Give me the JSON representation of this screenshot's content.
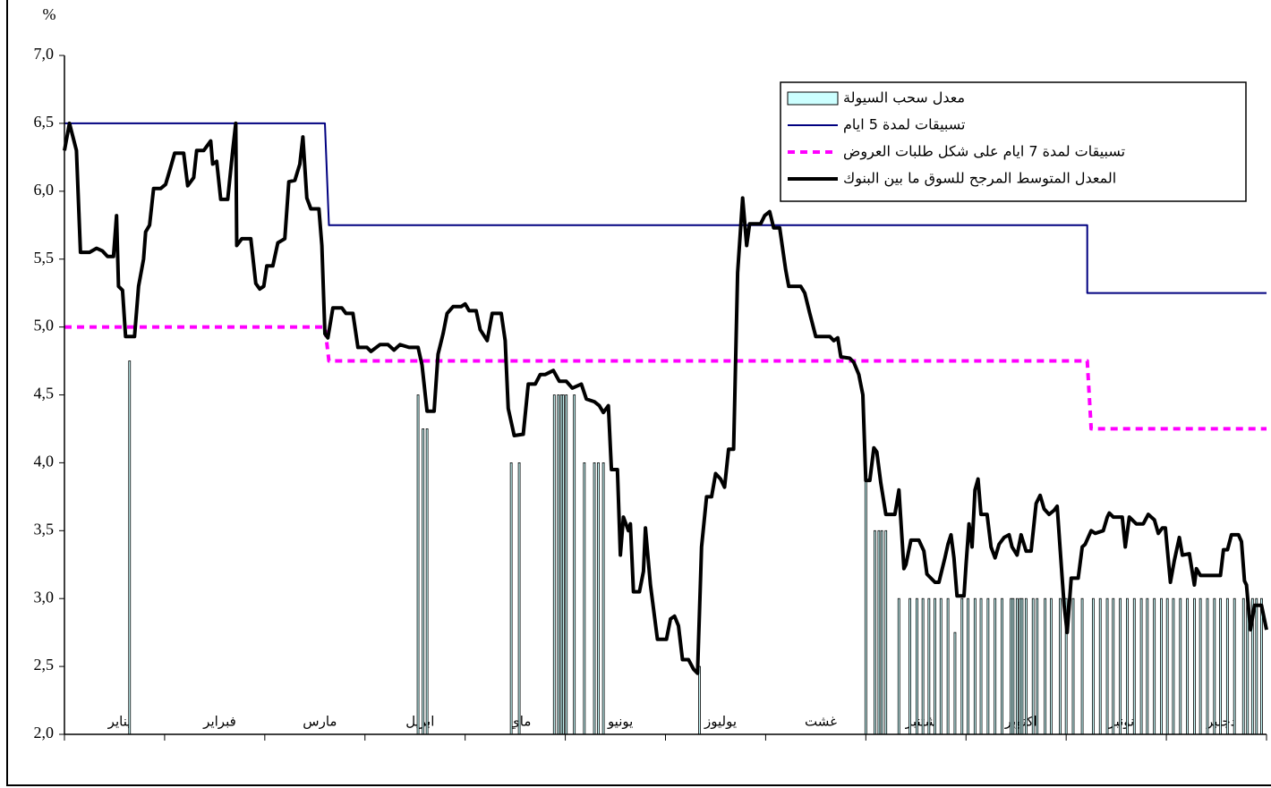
{
  "chart_data": {
    "type": "line",
    "y_unit": "%",
    "categories": [
      "يناير",
      "فبراير",
      "مارس",
      "ابريل",
      "ماي",
      "يونيو",
      "يوليوز",
      "غشت",
      "شتنبر",
      "اكتوبر",
      "نونبر",
      "دجنبر"
    ],
    "xlim": [
      0,
      12
    ],
    "ylim": [
      2.0,
      7.0
    ],
    "yticks": [
      {
        "value": 2.0,
        "label": "2,0"
      },
      {
        "value": 2.5,
        "label": "2,5"
      },
      {
        "value": 3.0,
        "label": "3,0"
      },
      {
        "value": 3.5,
        "label": "3,5"
      },
      {
        "value": 4.0,
        "label": "4,0"
      },
      {
        "value": 4.5,
        "label": "4,5"
      },
      {
        "value": 5.0,
        "label": "5,0"
      },
      {
        "value": 5.5,
        "label": "5,5"
      },
      {
        "value": 6.0,
        "label": "6,0"
      },
      {
        "value": 6.5,
        "label": "6,5"
      },
      {
        "value": 7.0,
        "label": "7,0"
      }
    ],
    "legend": "top-right",
    "series": [
      {
        "name": "معدل سحب السيولة",
        "type": "bar",
        "color": "#ccffff",
        "x": [
          0.65,
          3.53,
          3.58,
          3.62,
          4.46,
          4.54,
          4.89,
          4.93,
          4.96,
          4.98,
          5.01,
          5.09,
          5.19,
          5.29,
          5.33,
          5.38,
          6.34,
          8.0,
          8.09,
          8.13,
          8.16,
          8.2,
          8.33,
          8.44,
          8.51,
          8.57,
          8.63,
          8.69,
          8.75,
          8.82,
          8.89,
          8.96,
          9.02,
          9.09,
          9.15,
          9.22,
          9.29,
          9.36,
          9.45,
          9.47,
          9.51,
          9.54,
          9.56,
          9.6,
          9.67,
          9.71,
          9.79,
          9.85,
          9.94,
          10.0,
          10.07,
          10.16,
          10.27,
          10.34,
          10.41,
          10.47,
          10.54,
          10.61,
          10.68,
          10.75,
          10.81,
          10.88,
          10.95,
          11.01,
          11.07,
          11.14,
          11.21,
          11.28,
          11.34,
          11.41,
          11.48,
          11.54,
          11.61,
          11.68,
          11.77,
          11.81,
          11.86,
          11.9,
          11.95
        ],
        "values": [
          4.75,
          4.5,
          4.25,
          4.25,
          4.0,
          4.0,
          4.5,
          4.5,
          4.5,
          4.5,
          4.5,
          4.5,
          4.0,
          4.0,
          4.0,
          4.0,
          2.5,
          3.9,
          3.5,
          3.5,
          3.5,
          3.5,
          3.0,
          3.0,
          3.0,
          3.0,
          3.0,
          3.0,
          3.0,
          3.0,
          2.75,
          3.0,
          3.0,
          3.0,
          3.0,
          3.0,
          3.0,
          3.0,
          3.0,
          3.0,
          3.0,
          3.0,
          3.0,
          3.0,
          3.0,
          3.0,
          3.0,
          3.0,
          3.0,
          3.0,
          3.0,
          3.0,
          3.0,
          3.0,
          3.0,
          3.0,
          3.0,
          3.0,
          3.0,
          3.0,
          3.0,
          3.0,
          3.0,
          3.0,
          3.0,
          3.0,
          3.0,
          3.0,
          3.0,
          3.0,
          3.0,
          3.0,
          3.0,
          3.0,
          3.0,
          3.0,
          3.0,
          3.0,
          3.0
        ]
      },
      {
        "name": "تسبيقات لمدة 5 ايام",
        "type": "line",
        "color": "#000080",
        "line_width": 2,
        "dashed": false,
        "x": [
          0,
          2.6,
          2.64,
          10.21,
          10.21,
          12
        ],
        "values": [
          6.5,
          6.5,
          5.75,
          5.75,
          5.25,
          5.25
        ]
      },
      {
        "name": "تسبيقات لمدة 7 ايام على شكل طلبات العروض",
        "type": "line",
        "color": "#ff00ff",
        "line_width": 4,
        "dashed": true,
        "x": [
          0,
          2.6,
          2.64,
          10.21,
          10.25,
          12
        ],
        "values": [
          5.0,
          5.0,
          4.75,
          4.75,
          4.25,
          4.25
        ]
      },
      {
        "name": "المعدل المتوسط المرجح للسوق ما بين البنوك",
        "type": "line",
        "color": "#000000",
        "line_width": 4,
        "dashed": false,
        "x": [
          0,
          0.05,
          0.12,
          0.16,
          0.25,
          0.32,
          0.38,
          0.43,
          0.49,
          0.52,
          0.54,
          0.58,
          0.61,
          0.7,
          0.74,
          0.79,
          0.81,
          0.85,
          0.89,
          0.96,
          1.01,
          1.05,
          1.1,
          1.19,
          1.23,
          1.29,
          1.32,
          1.39,
          1.46,
          1.48,
          1.52,
          1.56,
          1.63,
          1.68,
          1.71,
          1.72,
          1.77,
          1.86,
          1.91,
          1.95,
          1.99,
          2.02,
          2.08,
          2.13,
          2.2,
          2.24,
          2.3,
          2.35,
          2.38,
          2.42,
          2.46,
          2.54,
          2.57,
          2.6,
          2.63,
          2.68,
          2.77,
          2.81,
          2.88,
          2.93,
          3.02,
          3.06,
          3.15,
          3.23,
          3.29,
          3.35,
          3.44,
          3.53,
          3.57,
          3.62,
          3.69,
          3.73,
          3.78,
          3.82,
          3.88,
          3.96,
          4.0,
          4.04,
          4.11,
          4.15,
          4.22,
          4.27,
          4.36,
          4.4,
          4.43,
          4.49,
          4.58,
          4.63,
          4.7,
          4.75,
          4.8,
          4.88,
          4.94,
          5.01,
          5.07,
          5.16,
          5.21,
          5.29,
          5.34,
          5.38,
          5.43,
          5.46,
          5.52,
          5.55,
          5.58,
          5.63,
          5.65,
          5.68,
          5.74,
          5.78,
          5.8,
          5.85,
          5.92,
          6.01,
          6.05,
          6.09,
          6.13,
          6.17,
          6.23,
          6.28,
          6.32,
          6.36,
          6.41,
          6.46,
          6.5,
          6.55,
          6.59,
          6.63,
          6.68,
          6.72,
          6.77,
          6.81,
          6.84,
          6.95,
          6.99,
          7.04,
          7.08,
          7.14,
          7.2,
          7.23,
          7.35,
          7.39,
          7.44,
          7.5,
          7.64,
          7.68,
          7.72,
          7.75,
          7.84,
          7.88,
          7.93,
          7.97,
          8.0,
          8.04,
          8.08,
          8.11,
          8.15,
          8.2,
          8.29,
          8.33,
          8.38,
          8.4,
          8.45,
          8.53,
          8.58,
          8.61,
          8.69,
          8.73,
          8.79,
          8.82,
          8.85,
          8.88,
          8.91,
          8.98,
          9.0,
          9.03,
          9.06,
          9.09,
          9.12,
          9.15,
          9.21,
          9.25,
          9.29,
          9.33,
          9.38,
          9.43,
          9.46,
          9.51,
          9.55,
          9.6,
          9.65,
          9.7,
          9.74,
          9.78,
          9.83,
          9.88,
          9.91,
          9.96,
          9.98,
          10.01,
          10.05,
          10.12,
          10.16,
          10.19,
          10.25,
          10.29,
          10.37,
          10.41,
          10.43,
          10.47,
          10.56,
          10.59,
          10.63,
          10.7,
          10.77,
          10.82,
          10.88,
          10.92,
          10.96,
          10.99,
          11.04,
          11.08,
          11.13,
          11.16,
          11.23,
          11.28,
          11.3,
          11.34,
          11.46,
          11.54,
          11.57,
          11.61,
          11.65,
          11.72,
          11.75,
          11.78,
          11.8,
          11.84,
          11.88,
          11.95,
          12.0
        ],
        "values": [
          6.3,
          6.5,
          6.3,
          5.55,
          5.55,
          5.58,
          5.56,
          5.52,
          5.52,
          5.82,
          5.3,
          5.27,
          4.93,
          4.93,
          5.3,
          5.5,
          5.7,
          5.75,
          6.02,
          6.02,
          6.05,
          6.15,
          6.28,
          6.28,
          6.04,
          6.1,
          6.3,
          6.3,
          6.37,
          6.2,
          6.22,
          5.94,
          5.94,
          6.3,
          6.5,
          5.6,
          5.65,
          5.65,
          5.32,
          5.28,
          5.3,
          5.45,
          5.45,
          5.62,
          5.65,
          6.07,
          6.08,
          6.2,
          6.4,
          5.95,
          5.87,
          5.87,
          5.6,
          4.95,
          4.92,
          5.14,
          5.14,
          5.1,
          5.1,
          4.85,
          4.85,
          4.82,
          4.87,
          4.87,
          4.83,
          4.87,
          4.85,
          4.85,
          4.72,
          4.38,
          4.38,
          4.8,
          4.95,
          5.1,
          5.15,
          5.15,
          5.17,
          5.12,
          5.12,
          4.98,
          4.9,
          5.1,
          5.1,
          4.9,
          4.4,
          4.2,
          4.21,
          4.58,
          4.58,
          4.65,
          4.65,
          4.68,
          4.6,
          4.6,
          4.55,
          4.58,
          4.47,
          4.45,
          4.42,
          4.37,
          4.42,
          3.95,
          3.95,
          3.32,
          3.6,
          3.5,
          3.55,
          3.05,
          3.05,
          3.2,
          3.52,
          3.1,
          2.7,
          2.7,
          2.85,
          2.87,
          2.8,
          2.55,
          2.55,
          2.48,
          2.45,
          3.38,
          3.75,
          3.75,
          3.92,
          3.88,
          3.82,
          4.1,
          4.1,
          5.4,
          5.95,
          5.6,
          5.76,
          5.76,
          5.82,
          5.85,
          5.73,
          5.73,
          5.42,
          5.3,
          5.3,
          5.25,
          5.1,
          4.93,
          4.93,
          4.9,
          4.92,
          4.78,
          4.77,
          4.74,
          4.65,
          4.5,
          3.87,
          3.87,
          4.11,
          4.08,
          3.85,
          3.62,
          3.62,
          3.8,
          3.22,
          3.25,
          3.43,
          3.43,
          3.35,
          3.18,
          3.12,
          3.12,
          3.3,
          3.4,
          3.47,
          3.3,
          3.02,
          3.02,
          3.25,
          3.55,
          3.38,
          3.8,
          3.88,
          3.62,
          3.62,
          3.38,
          3.3,
          3.4,
          3.45,
          3.47,
          3.38,
          3.32,
          3.47,
          3.35,
          3.35,
          3.7,
          3.76,
          3.66,
          3.62,
          3.65,
          3.68,
          3.15,
          2.95,
          2.75,
          3.15,
          3.15,
          3.38,
          3.4,
          3.5,
          3.48,
          3.5,
          3.6,
          3.63,
          3.6,
          3.6,
          3.38,
          3.6,
          3.55,
          3.55,
          3.62,
          3.58,
          3.48,
          3.52,
          3.52,
          3.12,
          3.28,
          3.45,
          3.32,
          3.33,
          3.1,
          3.22,
          3.17,
          3.17,
          3.17,
          3.36,
          3.36,
          3.47,
          3.47,
          3.42,
          3.13,
          3.1,
          2.77,
          2.95,
          2.95,
          2.77
        ]
      }
    ]
  }
}
